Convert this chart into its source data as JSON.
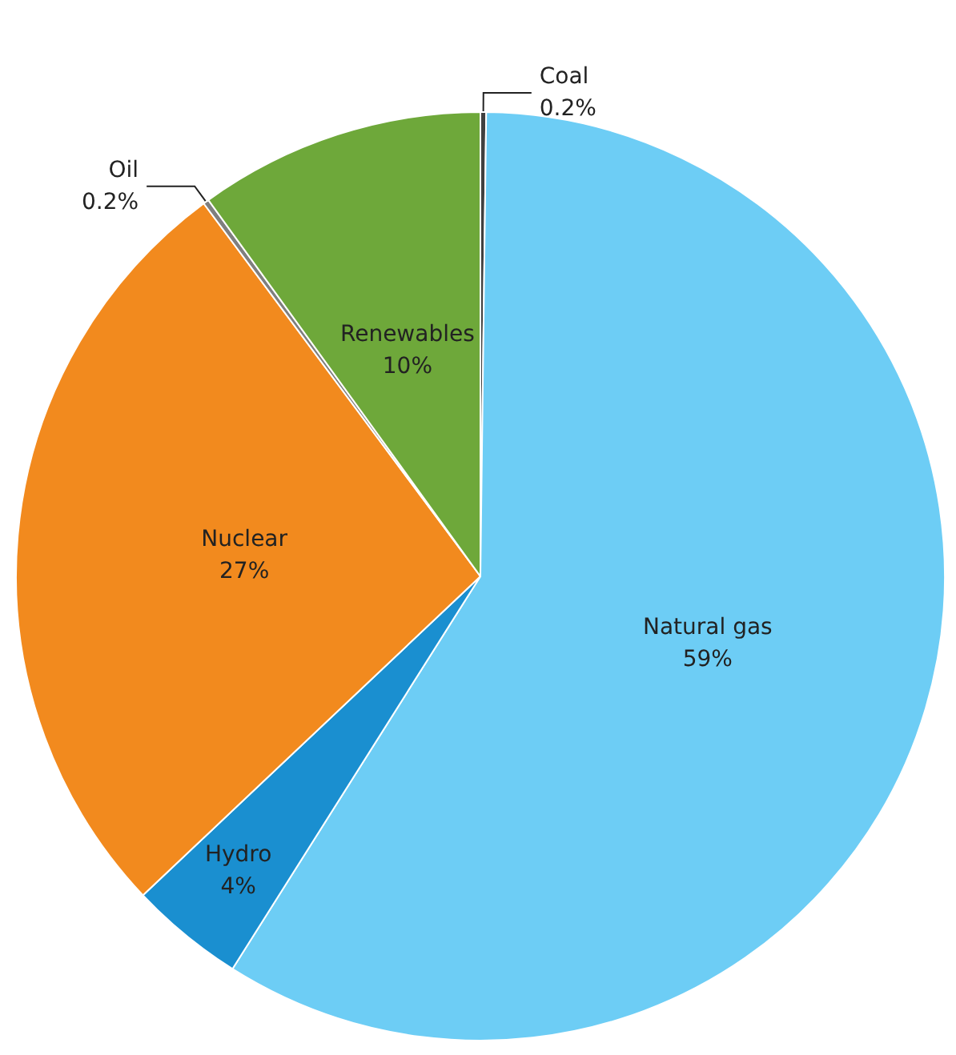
{
  "chart_data": {
    "type": "pie",
    "categories": [
      "Coal",
      "Natural gas",
      "Hydro",
      "Nuclear",
      "Oil",
      "Renewables"
    ],
    "values": [
      0.2,
      59,
      4,
      27,
      0.2,
      10
    ],
    "colors": [
      "#404040",
      "#6dcdf5",
      "#1a8fd0",
      "#f28a1e",
      "#7f7f7f",
      "#6ea83a"
    ],
    "value_labels": [
      "0.2%",
      "59%",
      "4%",
      "27%",
      "0.2%",
      "10%"
    ],
    "legend": false
  }
}
